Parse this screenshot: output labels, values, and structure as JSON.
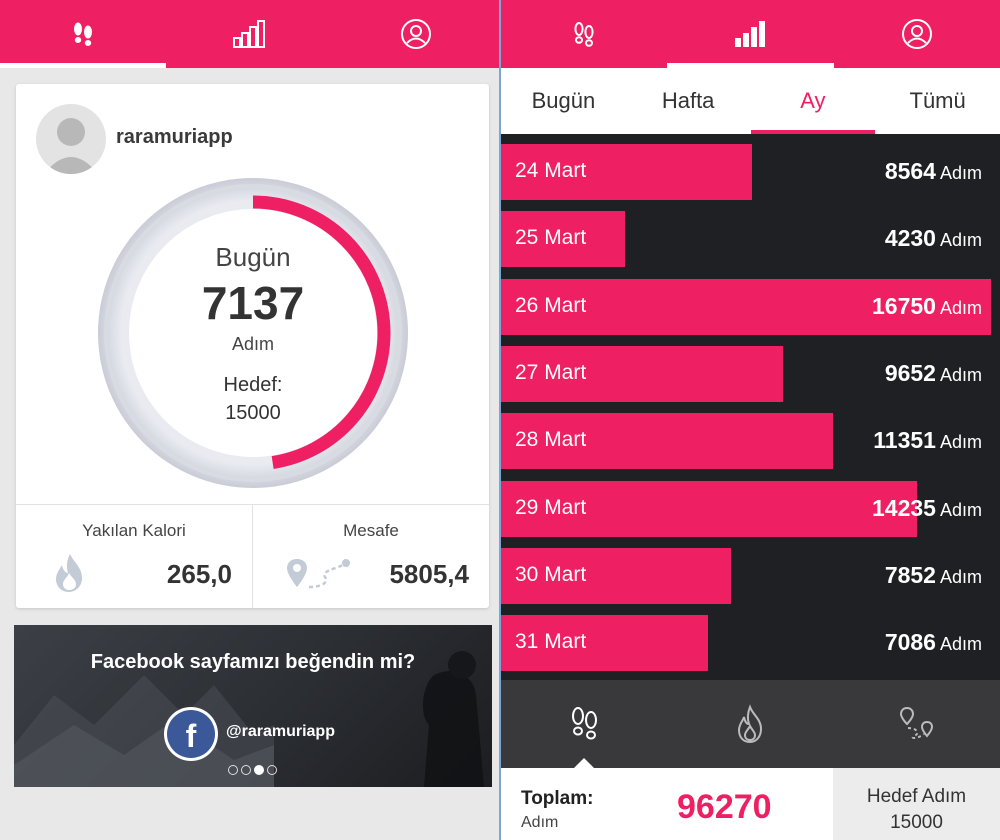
{
  "colors": {
    "accent": "#ee1f63",
    "ring_track": "#d6d8e0",
    "dark_bg": "#1f2023"
  },
  "left_screen": {
    "nav_icons": [
      "footsteps-icon",
      "bar-chart-icon",
      "user-icon"
    ],
    "active_tab": 0,
    "profile": {
      "username": "raramuriapp",
      "avatar_icon": "default-avatar-icon"
    },
    "today": {
      "label": "Bugün",
      "steps": "7137",
      "unit": "Adım",
      "goal_label": "Hedef:",
      "goal_value": "15000",
      "progress": 0.4758
    },
    "stats": {
      "calories": {
        "label": "Yakılan Kalori",
        "value": "265,0",
        "icon": "flame-icon"
      },
      "distance": {
        "label": "Mesafe",
        "value": "5805,4",
        "icon": "map-route-icon"
      }
    },
    "promo": {
      "title": "Facebook sayfamızı beğendin mi?",
      "handle": "@raramuriapp",
      "icon": "facebook-icon",
      "dots": 4,
      "active_dot": 2
    }
  },
  "right_screen": {
    "nav_icons": [
      "footsteps-icon",
      "bar-chart-icon",
      "user-icon"
    ],
    "active_tab": 1,
    "subtabs": [
      "Bugün",
      "Hafta",
      "Ay",
      "Tümü"
    ],
    "active_subtab": 2,
    "unit": "Adım",
    "max_steps": 16750,
    "days": [
      {
        "date": "24 Mart",
        "steps": 8564,
        "steps_text": "8564"
      },
      {
        "date": "25 Mart",
        "steps": 4230,
        "steps_text": "4230"
      },
      {
        "date": "26 Mart",
        "steps": 16750,
        "steps_text": "16750"
      },
      {
        "date": "27 Mart",
        "steps": 9652,
        "steps_text": "9652"
      },
      {
        "date": "28 Mart",
        "steps": 11351,
        "steps_text": "11351"
      },
      {
        "date": "29 Mart",
        "steps": 14235,
        "steps_text": "14235"
      },
      {
        "date": "30 Mart",
        "steps": 7852,
        "steps_text": "7852"
      },
      {
        "date": "31 Mart",
        "steps": 7086,
        "steps_text": "7086"
      }
    ],
    "metric_icons": [
      "footsteps-icon",
      "flame-icon",
      "map-route-icon"
    ],
    "active_metric": 0,
    "footer": {
      "total_label": "Toplam:",
      "total_unit": "Adım",
      "total_value": "96270",
      "goal_label": "Hedef Adım",
      "goal_value": "15000"
    }
  }
}
